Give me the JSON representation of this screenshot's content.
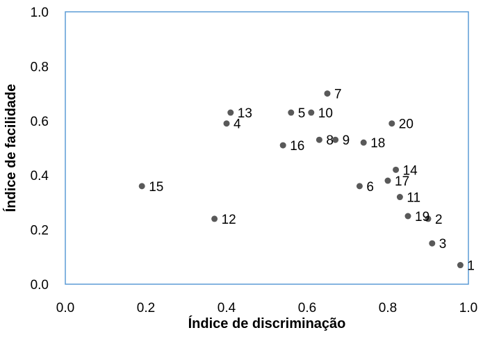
{
  "chart_data": {
    "type": "scatter",
    "xlabel": "Índice de discriminação",
    "ylabel": "Índice de facilidade",
    "xlim": [
      0.0,
      1.0
    ],
    "ylim": [
      0.0,
      1.0
    ],
    "x_ticks": [
      "0.0",
      "0.2",
      "0.4",
      "0.6",
      "0.8",
      "1.0"
    ],
    "y_ticks": [
      "0.0",
      "0.2",
      "0.4",
      "0.6",
      "0.8",
      "1.0"
    ],
    "grid": false,
    "legend": "none",
    "colors": {
      "marker": "#595959",
      "frame": "#5b9bd5",
      "text": "#000000"
    },
    "points": [
      {
        "label": "1",
        "x": 0.98,
        "y": 0.07
      },
      {
        "label": "2",
        "x": 0.9,
        "y": 0.24
      },
      {
        "label": "3",
        "x": 0.91,
        "y": 0.15
      },
      {
        "label": "4",
        "x": 0.4,
        "y": 0.59
      },
      {
        "label": "5",
        "x": 0.56,
        "y": 0.63
      },
      {
        "label": "6",
        "x": 0.73,
        "y": 0.36
      },
      {
        "label": "7",
        "x": 0.65,
        "y": 0.7
      },
      {
        "label": "8",
        "x": 0.63,
        "y": 0.53
      },
      {
        "label": "9",
        "x": 0.67,
        "y": 0.53
      },
      {
        "label": "10",
        "x": 0.61,
        "y": 0.63
      },
      {
        "label": "11",
        "x": 0.83,
        "y": 0.32
      },
      {
        "label": "12",
        "x": 0.37,
        "y": 0.24
      },
      {
        "label": "13",
        "x": 0.41,
        "y": 0.63
      },
      {
        "label": "14",
        "x": 0.82,
        "y": 0.42
      },
      {
        "label": "15",
        "x": 0.19,
        "y": 0.36
      },
      {
        "label": "16",
        "x": 0.54,
        "y": 0.51
      },
      {
        "label": "17",
        "x": 0.8,
        "y": 0.38
      },
      {
        "label": "18",
        "x": 0.74,
        "y": 0.52
      },
      {
        "label": "19",
        "x": 0.85,
        "y": 0.25
      },
      {
        "label": "20",
        "x": 0.81,
        "y": 0.59
      }
    ]
  }
}
